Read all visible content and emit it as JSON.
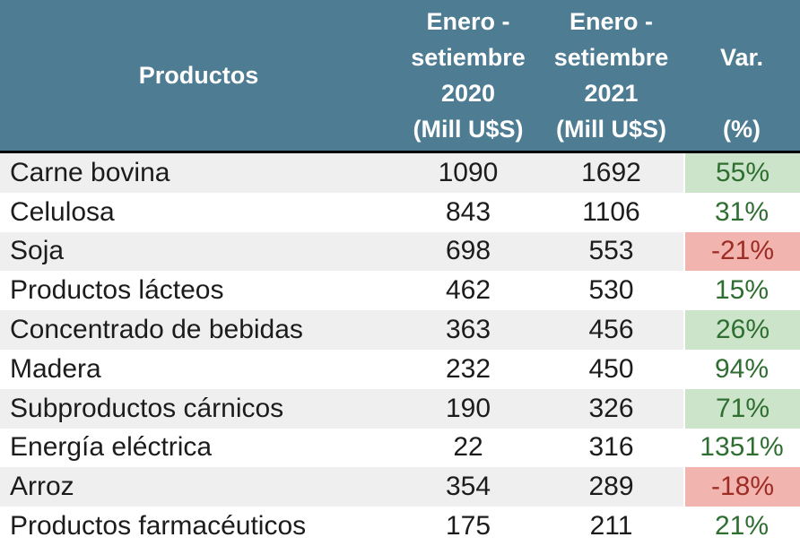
{
  "chart_data": {
    "type": "table",
    "columns": [
      "Productos",
      "Enero - setiembre 2020 (Mill U$S)",
      "Enero - setiembre 2021 (Mill U$S)",
      "Var. (%)"
    ],
    "rows": [
      {
        "producto": "Carne bovina",
        "mill_2020": "1090",
        "mill_2021": "1692",
        "var_pct": "55%",
        "var_fill": "positive"
      },
      {
        "producto": "Celulosa",
        "mill_2020": "843",
        "mill_2021": "1106",
        "var_pct": "31%",
        "var_fill": "none"
      },
      {
        "producto": "Soja",
        "mill_2020": "698",
        "mill_2021": "553",
        "var_pct": "-21%",
        "var_fill": "negative"
      },
      {
        "producto": "Productos lácteos",
        "mill_2020": "462",
        "mill_2021": "530",
        "var_pct": "15%",
        "var_fill": "none"
      },
      {
        "producto": "Concentrado de bebidas",
        "mill_2020": "363",
        "mill_2021": "456",
        "var_pct": "26%",
        "var_fill": "positive"
      },
      {
        "producto": "Madera",
        "mill_2020": "232",
        "mill_2021": "450",
        "var_pct": "94%",
        "var_fill": "none"
      },
      {
        "producto": "Subproductos cárnicos",
        "mill_2020": "190",
        "mill_2021": "326",
        "var_pct": "71%",
        "var_fill": "positive"
      },
      {
        "producto": "Energía eléctrica",
        "mill_2020": "22",
        "mill_2021": "316",
        "var_pct": "1351%",
        "var_fill": "none"
      },
      {
        "producto": "Arroz",
        "mill_2020": "354",
        "mill_2021": "289",
        "var_pct": "-18%",
        "var_fill": "negative"
      },
      {
        "producto": "Productos farmacéuticos",
        "mill_2020": "175",
        "mill_2021": "211",
        "var_pct": "21%",
        "var_fill": "none"
      }
    ]
  },
  "header": {
    "productos": "Productos",
    "col2020": {
      "l1": "Enero -",
      "l2": "setiembre",
      "l3": "2020",
      "unit": "(Mill U$S)"
    },
    "col2021": {
      "l1": "Enero -",
      "l2": "setiembre",
      "l3": "2021",
      "unit": "(Mill U$S)"
    },
    "var": {
      "label": "Var.",
      "unit": "(%)"
    }
  },
  "colors": {
    "header_bg": "#4d7c93",
    "header_text": "#ffffff",
    "row_alt_bg": "#efefef",
    "row_bg": "#ffffff",
    "body_text": "#1c1c1c",
    "positive_text": "#2f6e31",
    "negative_text": "#9d2c25",
    "positive_fill": "#cce5ca",
    "negative_fill": "#f2b4ae",
    "divider": "#000000"
  }
}
